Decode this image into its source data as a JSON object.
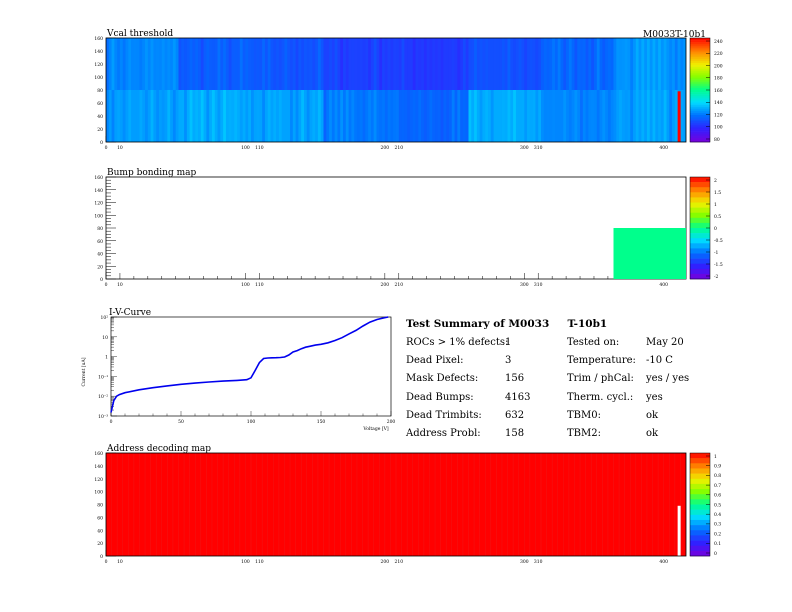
{
  "header_right": "M0033T-10b1",
  "chart_data": [
    {
      "type": "heatmap",
      "title": "Vcal threshold",
      "xlim": [
        0,
        416
      ],
      "ylim": [
        0,
        160
      ],
      "x_ticks": [
        0,
        10,
        100,
        110,
        200,
        210,
        300,
        310,
        400
      ],
      "y_ticks": [
        0,
        20,
        40,
        60,
        80,
        100,
        120,
        140,
        160
      ],
      "colorbar_ticks": [
        "240",
        "220",
        "200",
        "180",
        "160",
        "140",
        "120",
        "100",
        "80"
      ],
      "z_range": [
        70,
        250
      ],
      "grid": "2x8 readout chips, 52x80 pixels each",
      "roc_mean_values": [
        [
          120,
          110,
          108,
          102,
          100,
          106,
          113,
          123
        ],
        [
          125,
          128,
          126,
          117,
          112,
          128,
          120,
          125
        ]
      ],
      "hot_column": {
        "x": 410,
        "y_range": [
          0,
          78
        ],
        "value": 250
      }
    },
    {
      "type": "heatmap",
      "title": "Bump bonding map",
      "xlim": [
        0,
        416
      ],
      "ylim": [
        0,
        160
      ],
      "x_ticks": [
        0,
        10,
        100,
        110,
        200,
        210,
        300,
        310,
        400
      ],
      "y_ticks": [
        0,
        20,
        40,
        60,
        80,
        100,
        120,
        140,
        160
      ],
      "colorbar_ticks": [
        "2",
        "1.5",
        "1",
        "0.5",
        "0",
        "-0.5",
        "-1",
        "-1.5",
        "-2"
      ],
      "z_range": [
        -2,
        2
      ],
      "filled_region": {
        "x_range": [
          364,
          416
        ],
        "y_range": [
          0,
          80
        ],
        "value": 0
      }
    },
    {
      "type": "line",
      "title": "I-V-Curve",
      "xlabel": "Voltage [V]",
      "ylabel": "Current [uA]",
      "log_y": true,
      "xlim": [
        0,
        200
      ],
      "ylim": [
        0.001,
        100
      ],
      "x_ticks": [
        "0",
        "50",
        "100",
        "150",
        "200"
      ],
      "y_ticks": [
        "10⁻³",
        "10⁻²",
        "10⁻¹",
        "1",
        "10",
        "10²"
      ],
      "series": [
        {
          "x": [
            0,
            2,
            4,
            6,
            10,
            20,
            30,
            40,
            50,
            60,
            70,
            80,
            90,
            97,
            100,
            103,
            106,
            109,
            112,
            115,
            118,
            121,
            124,
            127,
            130,
            133,
            136,
            139,
            142,
            146,
            150,
            155,
            160,
            165,
            170,
            175,
            180,
            185,
            190,
            195,
            198
          ],
          "y": [
            0.0015,
            0.006,
            0.01,
            0.012,
            0.015,
            0.021,
            0.027,
            0.033,
            0.04,
            0.046,
            0.052,
            0.058,
            0.063,
            0.068,
            0.085,
            0.2,
            0.5,
            0.8,
            0.85,
            0.87,
            0.88,
            0.9,
            0.95,
            1.2,
            1.7,
            2.0,
            2.5,
            3.0,
            3.3,
            3.8,
            4.2,
            5.0,
            6.5,
            9.0,
            14,
            21,
            35,
            55,
            75,
            90,
            100
          ]
        }
      ]
    },
    {
      "type": "heatmap",
      "title": "Address decoding map",
      "xlim": [
        0,
        416
      ],
      "ylim": [
        0,
        160
      ],
      "x_ticks": [
        0,
        10,
        100,
        110,
        200,
        210,
        300,
        310,
        400
      ],
      "y_ticks": [
        0,
        20,
        40,
        60,
        80,
        100,
        120,
        140,
        160
      ],
      "colorbar_ticks": [
        "1",
        "0.9",
        "0.8",
        "0.7",
        "0.6",
        "0.5",
        "0.4",
        "0.3",
        "0.2",
        "0.1",
        "0"
      ],
      "z_range": [
        0,
        1
      ],
      "uniform_value": 1,
      "gap_column": {
        "x": 410,
        "y_range": [
          0,
          78
        ],
        "value": 0
      }
    }
  ],
  "summary": {
    "title_prefix": "Test Summary of M0033",
    "title_suffix": "T-10b1",
    "rows": [
      {
        "label": "ROCs > 1% defects:",
        "value": "1",
        "label2": "Tested on:",
        "value2": "May 20"
      },
      {
        "label": "Dead Pixel:",
        "value": "3",
        "label2": "Temperature:",
        "value2": "-10 C"
      },
      {
        "label": "Mask Defects:",
        "value": "156",
        "label2": "Trim / phCal:",
        "value2": "yes / yes"
      },
      {
        "label": "Dead Bumps:",
        "value": "4163",
        "label2": "Therm. cycl.:",
        "value2": "yes"
      },
      {
        "label": "Dead Trimbits:",
        "value": "632",
        "label2": "TBM0:",
        "value2": "ok"
      },
      {
        "label": "Address Probl:",
        "value": "158",
        "label2": "TBM2:",
        "value2": "ok"
      }
    ]
  }
}
